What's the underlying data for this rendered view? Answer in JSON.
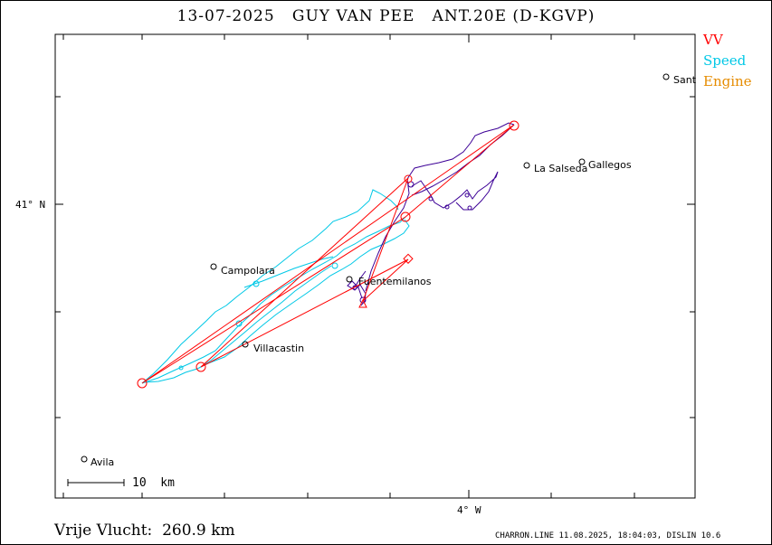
{
  "header": {
    "title": "13-07-2025   GUY VAN PEE   ANT.20E (D-KGVP)"
  },
  "legend": {
    "items": [
      {
        "label": "VV",
        "color": "#ff0000"
      },
      {
        "label": "Speed",
        "color": "#00c8e6"
      },
      {
        "label": "Engine",
        "color": "#e68c00"
      }
    ]
  },
  "axes": {
    "lat_label": "41° N",
    "lon_label": "4° W"
  },
  "scale_bar": {
    "label": "10  km"
  },
  "places": [
    {
      "name": "Sant"
    },
    {
      "name": "La Salseda"
    },
    {
      "name": "Gallegos"
    },
    {
      "name": "Campolara"
    },
    {
      "name": "Fuentemilanos"
    },
    {
      "name": "Villacastin"
    },
    {
      "name": "Avila"
    }
  ],
  "flight": {
    "distance_label": "Vrije Vlucht:  260.9 km"
  },
  "footer": {
    "text": "CHARRON.LINE 11.08.2025, 18:04:03, DISLIN 10.6"
  },
  "colors": {
    "task": "#ff0000",
    "track_glide": "#00c8e6",
    "track_climb": "#3c0096"
  }
}
